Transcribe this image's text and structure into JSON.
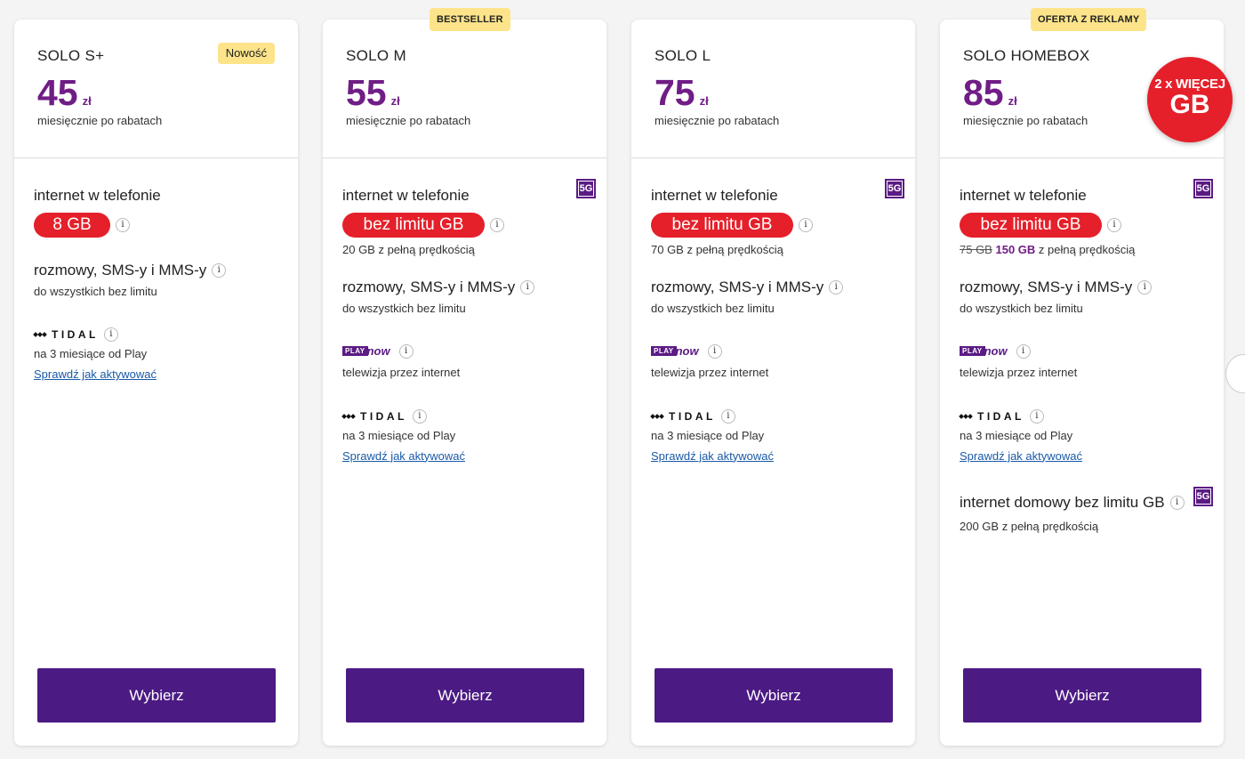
{
  "colors": {
    "price": "#701d86",
    "pill": "#e5202a",
    "button": "#4b1a83",
    "badge_yellow": "#fde48a",
    "badge_5g": "#5b1b84",
    "link": "#1a5aa8"
  },
  "common": {
    "currency": "zł",
    "price_note": "miesięcznie po rabatach",
    "internet_title": "internet w telefonie",
    "calls_title": "rozmowy, SMS-y i MMS-y",
    "calls_sub": "do wszystkich bez limitu",
    "tidal_text": "TIDAL",
    "tidal_sub": "na 3 miesiące od Play",
    "activate_link": "Sprawdź jak aktywować",
    "playnow_play": "PLAY",
    "playnow_now": "now",
    "playnow_sub": "telewizja przez internet",
    "badge_5g": "5G",
    "info_glyph": "i",
    "button_label": "Wybierz"
  },
  "plans": [
    {
      "name": "SOLO S+",
      "price": "45",
      "new_badge": "Nowość",
      "data_pill": "8 GB"
    },
    {
      "name": "SOLO M",
      "price": "55",
      "top_badge": "BESTSELLER",
      "data_pill": "bez limitu GB",
      "speed_note": "20 GB z pełną prędkością"
    },
    {
      "name": "SOLO L",
      "price": "75",
      "data_pill": "bez limitu GB",
      "speed_note": "70 GB z pełną prędkością"
    },
    {
      "name": "SOLO HOMEBOX",
      "price": "85",
      "top_badge": "OFERTA Z REKLAMY",
      "promo_line1": "2 x WIĘCEJ",
      "promo_line2": "GB",
      "data_pill": "bez limitu GB",
      "speed_old": "75 GB",
      "speed_new": "150 GB",
      "speed_rest": "z pełną prędkością",
      "home_title": "internet domowy bez limitu GB",
      "home_sub": "200 GB z pełną prędkością"
    }
  ]
}
